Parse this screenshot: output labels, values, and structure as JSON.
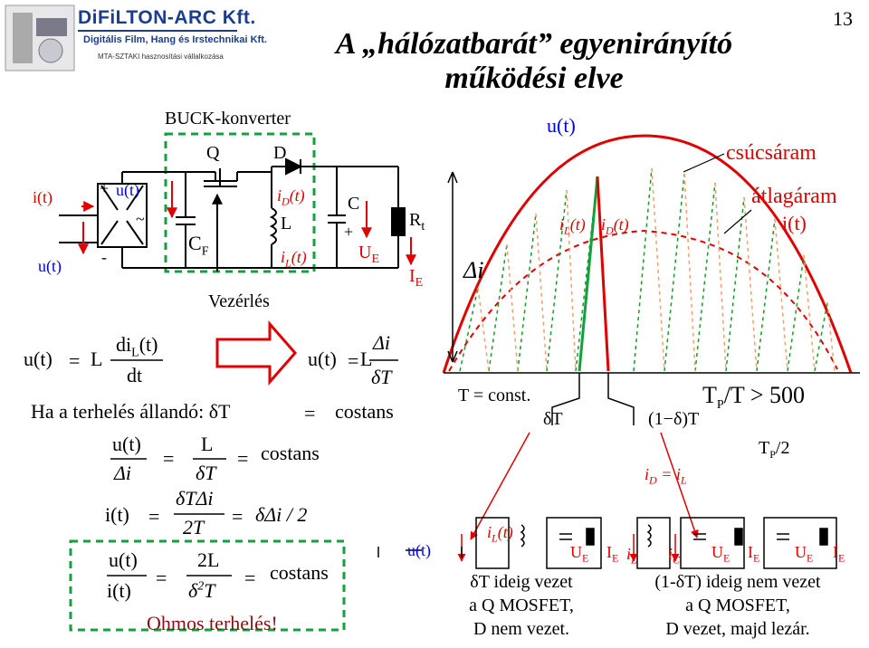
{
  "logo": {
    "title": "DiFiLTON-ARC Kft.",
    "subtitle": "Digitális Film, Hang és Irstechnikai Kft.",
    "note": "MTA-SZTAKI hasznosítási vállalkozása"
  },
  "page": {
    "title_line1": "A „hálózatbarát” egyenirányító",
    "title_line2": "működési elve",
    "number": "13"
  },
  "circuit": {
    "buck_label": "BUCK-konverter",
    "control_label": "Vezérlés",
    "q": "Q",
    "d": "D",
    "c": "C",
    "cf": "C",
    "cf_sub": "F",
    "l": "L",
    "rt": "R",
    "rt_sub": "t",
    "ue": "U",
    "ue_sub": "E",
    "ie": "I",
    "ie_sub": "E",
    "it": "i(t)",
    "ut_left": "u(t)",
    "ut_bridge": "u(t)",
    "tilde": "~",
    "plus": "+",
    "minus": "-",
    "id": "i",
    "id_sub": "D",
    "id_paren": "(t)",
    "il": "i",
    "il_sub": "L",
    "il_paren": "(t)"
  },
  "equations": {
    "eq1_lhs": "u(t)",
    "eq1_eq": "=",
    "eq1_L": "L",
    "eq1_num": "di",
    "eq1_num_sub": "L",
    "eq1_num_tail": "(t)",
    "eq1_den": "dt",
    "eq2_lhs": "u(t)",
    "eq2_eq": "=",
    "eq2_L": "L",
    "eq2_num": "Δi",
    "eq2_den": "δT",
    "load_text": "Ha a terhelés állandó: δT",
    "load_eq": "=",
    "load_val": "costans",
    "eq3_num": "u(t)",
    "eq3_den": "Δi",
    "eq3_eq1": "=",
    "eq3_Lnum": "L",
    "eq3_Lden": "δT",
    "eq3_eq2": "=",
    "eq3_val": "costans",
    "eq4_lhs": "i(t)",
    "eq4_eq1": "=",
    "eq4_num": "δTΔi",
    "eq4_den": "2T",
    "eq4_eq2": "=",
    "eq4_rhs": "δΔi / 2",
    "eq5_num": "u(t)",
    "eq5_den": "i(t)",
    "eq5_eq1": "=",
    "eq5_Lnum": "2L",
    "eq5_Lden": "δ",
    "eq5_sup": "2",
    "eq5_Lden2": "T",
    "eq5_eq2": "=",
    "eq5_val": "costans",
    "ohmic": "Ohmos terhelés!"
  },
  "waveform": {
    "ut": "u(t)",
    "peak": "csúcsáram",
    "avg": "átlagáram",
    "avg_it": "i(t)",
    "delta_i": "Δi",
    "il": "i",
    "il_sub": "L",
    "il_paren": "(t)",
    "id": "i",
    "id_sub": "D",
    "id_paren": "(t)",
    "tconst": "T = const.",
    "dT": "δT",
    "one_minus": "(1−δ)T",
    "tp_ratio": "T",
    "tp_sub": "P",
    "tp_ratio_tail": "/T > 500",
    "tp2": "T",
    "tp2_sub": "P",
    "tp2_tail": "/2",
    "id_eq": "i",
    "id_eq_sub": "D",
    "id_eq_mid": " = i",
    "id_eq_sub2": "L"
  },
  "bottom": {
    "ut": "u(t)",
    "il": "i",
    "il_sub": "L",
    "il_paren": "(t)",
    "ue": "U",
    "ue_sub": "E",
    "ie": "I",
    "ie_sub": "E",
    "ic": "i",
    "ic_sub": "C",
    "left_l1": "δT ideig vezet",
    "left_l2": "a Q MOSFET,",
    "left_l3": "D nem vezet.",
    "right_l1": "(1-δT) ideig nem vezet",
    "right_l2": "a Q MOSFET,",
    "right_l3": "D vezet, majd lezár."
  },
  "colors": {
    "red": "#e00000",
    "blue": "#0000ee",
    "green": "#14a03c",
    "orange": "#f3a06a",
    "dashgreen": "#1a9a2a"
  }
}
